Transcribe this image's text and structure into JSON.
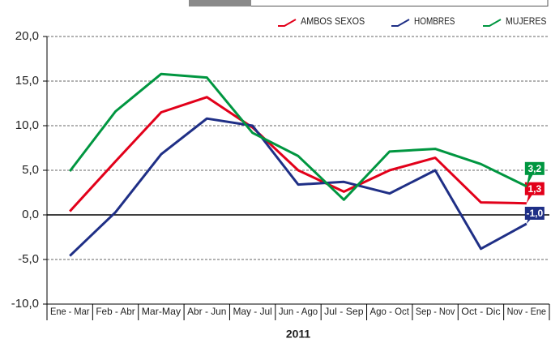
{
  "chart_data": {
    "type": "line",
    "xlabel": "2011",
    "categories": [
      "Ene - Mar",
      "Feb - Abr",
      "Mar-May",
      "Abr - Jun",
      "May - Jul",
      "Jun - Ago",
      "Jul - Sep",
      "Ago - Oct",
      "Sep - Nov",
      "Oct - Dic",
      "Nov - Ene"
    ],
    "series": [
      {
        "name": "AMBOS SEXOS",
        "color": "#e2001a",
        "values": [
          0.4,
          6.0,
          11.5,
          13.2,
          9.8,
          5.0,
          2.6,
          5.0,
          6.4,
          1.4,
          1.3
        ],
        "value_labels": [
          null,
          null,
          null,
          null,
          null,
          null,
          null,
          null,
          null,
          null,
          "1,3"
        ]
      },
      {
        "name": "HOMBRES",
        "color": "#1f2f86",
        "values": [
          -4.6,
          0.3,
          6.8,
          10.8,
          10.0,
          3.4,
          3.7,
          2.4,
          5.0,
          -3.8,
          -1.0
        ],
        "value_labels": [
          null,
          null,
          null,
          null,
          null,
          null,
          null,
          null,
          null,
          null,
          "-1,0"
        ]
      },
      {
        "name": "MUJERES",
        "color": "#009640",
        "values": [
          4.9,
          11.6,
          15.8,
          15.4,
          9.2,
          6.6,
          1.7,
          7.1,
          7.4,
          5.7,
          3.2
        ],
        "value_labels": [
          null,
          null,
          null,
          null,
          null,
          null,
          null,
          null,
          null,
          null,
          "3,2"
        ]
      }
    ],
    "ylim": [
      -10,
      20
    ],
    "yticks": [
      {
        "value": -10,
        "label": "-10,0"
      },
      {
        "value": -5,
        "label": "-5,0"
      },
      {
        "value": 0,
        "label": "0,0"
      },
      {
        "value": 5,
        "label": "5,0"
      },
      {
        "value": 10,
        "label": "10,0"
      },
      {
        "value": 15,
        "label": "15,0"
      },
      {
        "value": 20,
        "label": "20,0"
      }
    ],
    "grid": true
  }
}
